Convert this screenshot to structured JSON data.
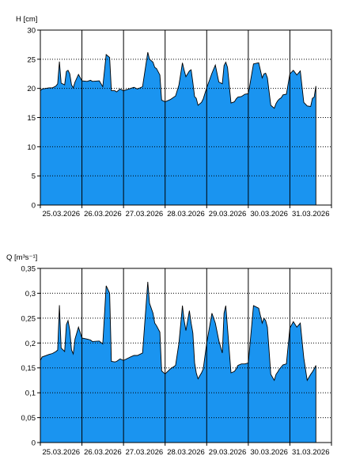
{
  "chart_data": [
    {
      "type": "area",
      "ylabel": "H [cm]",
      "ylim": [
        0,
        30
      ],
      "yticks": [
        "0",
        "5",
        "10",
        "15",
        "20",
        "25",
        "30"
      ],
      "xlim": [
        "25.03.2026 00:00",
        "31.03.2026 23:59"
      ],
      "xticks": [
        "25.03.2026",
        "26.03.2026",
        "27.03.2026",
        "28.03.2026",
        "29.03.2026",
        "30.03.2026",
        "31.03.2026"
      ],
      "grid": true,
      "fill_color": "#1a94f0",
      "series": [
        {
          "x": [
            "25.03.2026 00:00",
            "25.03.2026 01:00",
            "25.03.2026 05:00",
            "25.03.2026 07:00",
            "25.03.2026 09:00",
            "25.03.2026 10:00",
            "25.03.2026 11:00",
            "25.03.2026 12:00",
            "25.03.2026 14:00",
            "25.03.2026 15:00",
            "25.03.2026 16:00",
            "25.03.2026 17:00",
            "25.03.2026 18:00",
            "25.03.2026 19:00",
            "25.03.2026 20:00",
            "25.03.2026 22:00",
            "26.03.2026 00:00",
            "26.03.2026 03:00",
            "26.03.2026 05:00",
            "26.03.2026 06:00",
            "26.03.2026 10:00",
            "26.03.2026 12:00",
            "26.03.2026 14:00",
            "26.03.2026 16:00",
            "26.03.2026 17:00",
            "26.03.2026 19:00",
            "26.03.2026 20:00",
            "26.03.2026 22:00",
            "27.03.2026 00:00",
            "27.03.2026 04:00",
            "27.03.2026 06:00",
            "27.03.2026 08:00",
            "27.03.2026 11:00",
            "27.03.2026 14:00",
            "27.03.2026 15:00",
            "27.03.2026 17:00",
            "27.03.2026 18:00",
            "27.03.2026 19:00",
            "27.03.2026 21:00",
            "27.03.2026 22:00",
            "28.03.2026 00:00",
            "28.03.2026 03:00",
            "28.03.2026 06:00",
            "28.03.2026 08:00",
            "28.03.2026 10:00",
            "28.03.2026 11:00",
            "28.03.2026 12:00",
            "28.03.2026 14:00",
            "28.03.2026 15:00",
            "28.03.2026 16:00",
            "28.03.2026 17:00",
            "28.03.2026 18:00",
            "28.03.2026 19:00",
            "28.03.2026 21:00",
            "28.03.2026 22:00",
            "29.03.2026 00:00",
            "29.03.2026 03:00",
            "29.03.2026 05:00",
            "29.03.2026 07:00",
            "29.03.2026 09:00",
            "29.03.2026 10:00",
            "29.03.2026 11:00",
            "29.03.2026 12:00",
            "29.03.2026 14:00",
            "29.03.2026 16:00",
            "29.03.2026 17:00",
            "29.03.2026 18:00",
            "29.03.2026 20:00",
            "29.03.2026 22:00",
            "30.03.2026 00:00",
            "30.03.2026 03:00",
            "30.03.2026 06:00",
            "30.03.2026 08:00",
            "30.03.2026 09:00",
            "30.03.2026 10:00",
            "30.03.2026 11:00",
            "30.03.2026 13:00",
            "30.03.2026 15:00",
            "30.03.2026 16:00",
            "30.03.2026 17:00",
            "30.03.2026 18:00",
            "30.03.2026 19:00",
            "30.03.2026 20:00",
            "30.03.2026 22:00",
            "31.03.2026 00:00",
            "31.03.2026 02:00",
            "31.03.2026 04:00",
            "31.03.2026 06:00",
            "31.03.2026 08:00",
            "31.03.2026 10:00",
            "31.03.2026 12:00",
            "31.03.2026 13:00",
            "31.03.2026 14:00",
            "31.03.2026 15:00"
          ],
          "y": [
            19.6,
            19.9,
            20.1,
            20.1,
            20.4,
            20.8,
            24.6,
            20.9,
            20.6,
            22.9,
            23.1,
            22.5,
            20.6,
            20.1,
            21.1,
            22.4,
            21.3,
            21.2,
            21.4,
            21.2,
            21.3,
            20.3,
            25.8,
            25.3,
            19.6,
            19.6,
            19.4,
            19.9,
            19.6,
            20.0,
            20.2,
            19.9,
            20.3,
            26.2,
            25.0,
            24.5,
            23.6,
            23.4,
            22.3,
            18.0,
            17.7,
            18.1,
            18.7,
            20.6,
            24.4,
            23.1,
            22.0,
            23.0,
            23.2,
            21.0,
            18.6,
            18.3,
            17.1,
            17.6,
            18.2,
            20.1,
            22.6,
            24.0,
            21.1,
            20.8,
            23.9,
            24.5,
            23.6,
            17.5,
            17.7,
            18.2,
            18.5,
            18.6,
            19.0,
            19.1,
            24.2,
            24.4,
            21.8,
            22.5,
            22.6,
            21.8,
            17.1,
            16.6,
            17.4,
            17.9,
            18.2,
            18.4,
            18.9,
            19.0,
            22.5,
            23.1,
            22.3,
            23.0,
            17.6,
            17.0,
            16.9,
            18.3,
            18.5,
            20.4
          ]
        }
      ]
    },
    {
      "type": "area",
      "ylabel": "Q [m³s⁻¹]",
      "ylim": [
        0,
        0.35
      ],
      "yticks": [
        "0",
        "0,05",
        "0,1",
        "0,15",
        "0,2",
        "0,25",
        "0,3",
        "0,35"
      ],
      "xlim": [
        "25.03.2026 00:00",
        "31.03.2026 23:59"
      ],
      "xticks": [
        "25.03.2026",
        "26.03.2026",
        "27.03.2026",
        "28.03.2026",
        "29.03.2026",
        "30.03.2026",
        "31.03.2026"
      ],
      "grid": true,
      "fill_color": "#1a94f0",
      "series": [
        {
          "x": [
            "25.03.2026 00:00",
            "25.03.2026 01:00",
            "25.03.2026 05:00",
            "25.03.2026 07:00",
            "25.03.2026 09:00",
            "25.03.2026 10:00",
            "25.03.2026 11:00",
            "25.03.2026 12:00",
            "25.03.2026 14:00",
            "25.03.2026 15:00",
            "25.03.2026 16:00",
            "25.03.2026 17:00",
            "25.03.2026 18:00",
            "25.03.2026 19:00",
            "25.03.2026 20:00",
            "25.03.2026 22:00",
            "26.03.2026 00:00",
            "26.03.2026 03:00",
            "26.03.2026 05:00",
            "26.03.2026 06:00",
            "26.03.2026 10:00",
            "26.03.2026 12:00",
            "26.03.2026 14:00",
            "26.03.2026 16:00",
            "26.03.2026 17:00",
            "26.03.2026 19:00",
            "26.03.2026 20:00",
            "26.03.2026 22:00",
            "27.03.2026 00:00",
            "27.03.2026 04:00",
            "27.03.2026 06:00",
            "27.03.2026 08:00",
            "27.03.2026 11:00",
            "27.03.2026 14:00",
            "27.03.2026 15:00",
            "27.03.2026 17:00",
            "27.03.2026 18:00",
            "27.03.2026 19:00",
            "27.03.2026 21:00",
            "27.03.2026 22:00",
            "28.03.2026 00:00",
            "28.03.2026 03:00",
            "28.03.2026 06:00",
            "28.03.2026 08:00",
            "28.03.2026 10:00",
            "28.03.2026 11:00",
            "28.03.2026 12:00",
            "28.03.2026 14:00",
            "28.03.2026 15:00",
            "28.03.2026 16:00",
            "28.03.2026 17:00",
            "28.03.2026 18:00",
            "28.03.2026 19:00",
            "28.03.2026 21:00",
            "28.03.2026 22:00",
            "29.03.2026 00:00",
            "29.03.2026 03:00",
            "29.03.2026 05:00",
            "29.03.2026 07:00",
            "29.03.2026 09:00",
            "29.03.2026 10:00",
            "29.03.2026 11:00",
            "29.03.2026 12:00",
            "29.03.2026 14:00",
            "29.03.2026 16:00",
            "29.03.2026 17:00",
            "29.03.2026 18:00",
            "29.03.2026 20:00",
            "29.03.2026 22:00",
            "30.03.2026 00:00",
            "30.03.2026 03:00",
            "30.03.2026 06:00",
            "30.03.2026 08:00",
            "30.03.2026 09:00",
            "30.03.2026 10:00",
            "30.03.2026 11:00",
            "30.03.2026 13:00",
            "30.03.2026 15:00",
            "30.03.2026 16:00",
            "30.03.2026 17:00",
            "30.03.2026 18:00",
            "30.03.2026 19:00",
            "30.03.2026 20:00",
            "30.03.2026 22:00",
            "31.03.2026 00:00",
            "31.03.2026 02:00",
            "31.03.2026 04:00",
            "31.03.2026 06:00",
            "31.03.2026 08:00",
            "31.03.2026 10:00",
            "31.03.2026 12:00",
            "31.03.2026 13:00",
            "31.03.2026 14:00",
            "31.03.2026 15:00"
          ],
          "y": [
            0.165,
            0.172,
            0.177,
            0.179,
            0.183,
            0.186,
            0.276,
            0.19,
            0.183,
            0.237,
            0.245,
            0.226,
            0.186,
            0.178,
            0.208,
            0.232,
            0.21,
            0.208,
            0.206,
            0.203,
            0.204,
            0.198,
            0.315,
            0.3,
            0.163,
            0.162,
            0.163,
            0.168,
            0.165,
            0.172,
            0.175,
            0.175,
            0.18,
            0.323,
            0.28,
            0.26,
            0.24,
            0.235,
            0.222,
            0.144,
            0.138,
            0.148,
            0.155,
            0.2,
            0.275,
            0.245,
            0.225,
            0.265,
            0.24,
            0.22,
            0.16,
            0.14,
            0.128,
            0.14,
            0.148,
            0.2,
            0.26,
            0.24,
            0.205,
            0.18,
            0.26,
            0.275,
            0.23,
            0.14,
            0.143,
            0.148,
            0.155,
            0.158,
            0.158,
            0.16,
            0.275,
            0.27,
            0.24,
            0.25,
            0.245,
            0.232,
            0.137,
            0.125,
            0.137,
            0.142,
            0.148,
            0.152,
            0.156,
            0.158,
            0.23,
            0.243,
            0.232,
            0.24,
            0.17,
            0.125,
            0.137,
            0.142,
            0.148,
            0.155
          ]
        }
      ]
    }
  ]
}
